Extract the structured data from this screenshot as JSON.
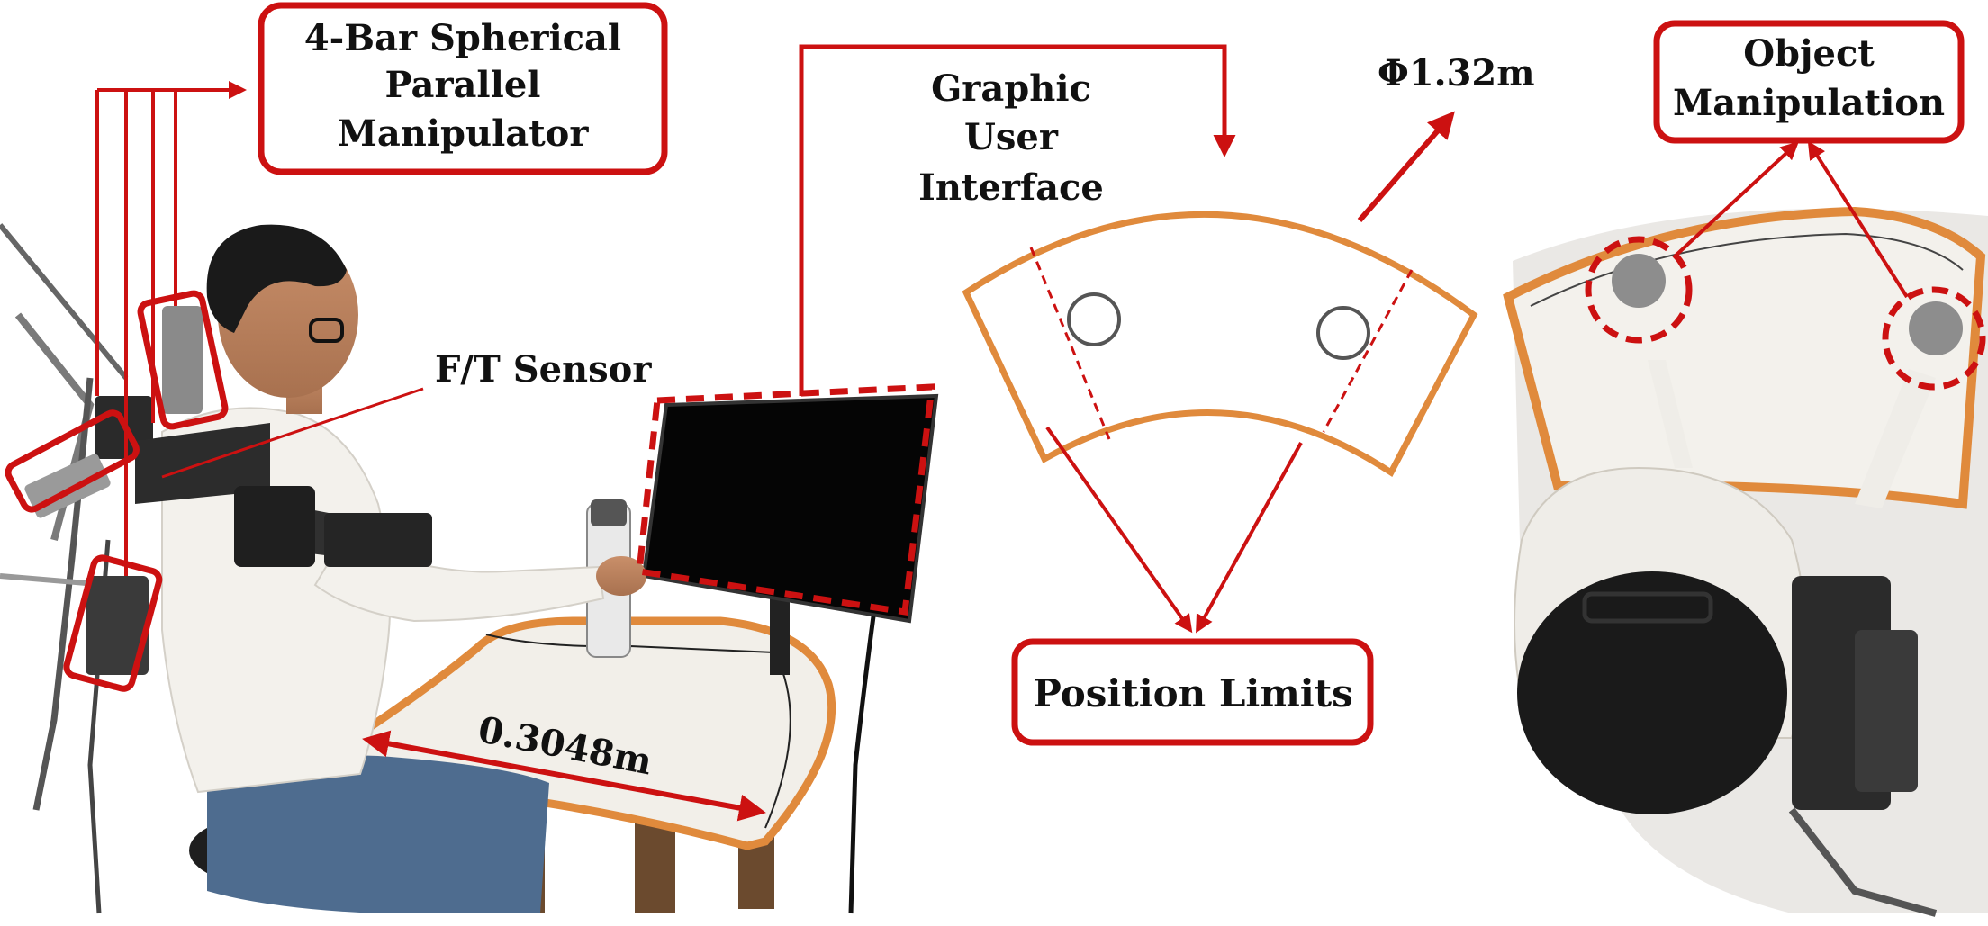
{
  "labels": {
    "manipulator": [
      "4-Bar Spherical",
      "Parallel",
      "Manipulator"
    ],
    "ft_sensor": "F/T Sensor",
    "gui": [
      "Graphic",
      "User",
      "Interface"
    ],
    "diameter": "Φ1.32m",
    "object_manipulation": [
      "Object",
      "Manipulation"
    ],
    "position_limits": "Position Limits",
    "table_width": "0.3048m"
  },
  "colors": {
    "annotation": "#cc1111",
    "workspace": "#e08a3c",
    "target": "#555555",
    "text": "#111111"
  }
}
